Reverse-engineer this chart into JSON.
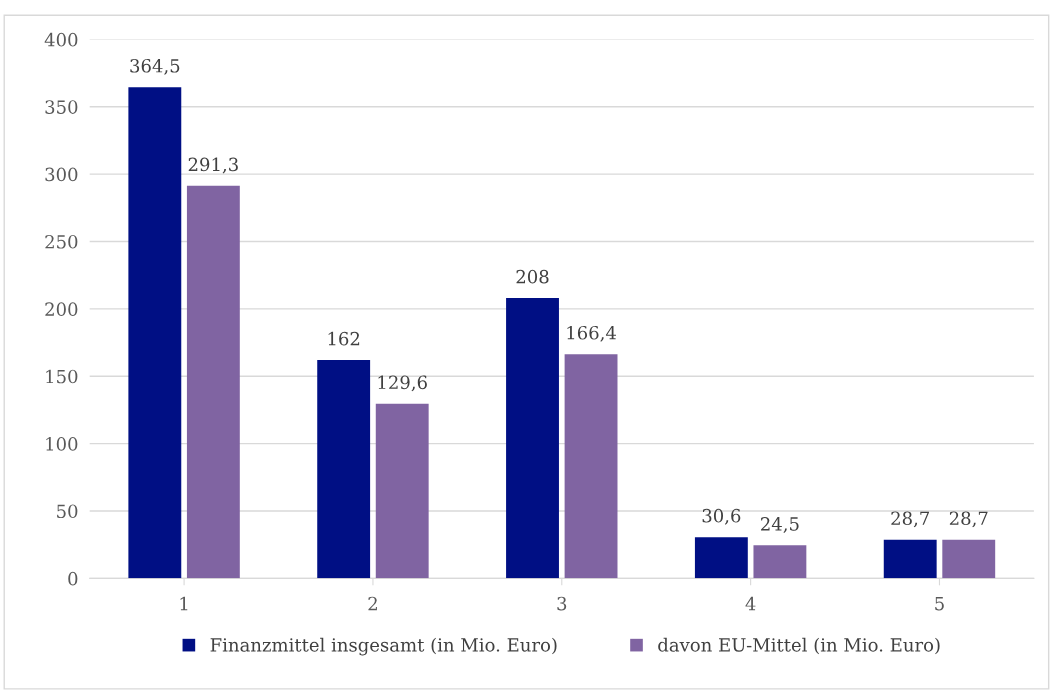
{
  "chart_data": {
    "type": "bar",
    "categories": [
      "1",
      "2",
      "3",
      "4",
      "5"
    ],
    "series": [
      {
        "name": "Finanzmittel insgesamt (in Mio. Euro)",
        "color": "#000f84",
        "values": [
          364.5,
          162,
          208,
          30.6,
          28.7
        ],
        "value_labels": [
          "364,5",
          "162",
          "208",
          "30,6",
          "28,7"
        ]
      },
      {
        "name": "davon EU-Mittel (in Mio. Euro)",
        "color": "#8064a2",
        "values": [
          291.3,
          129.6,
          166.4,
          24.5,
          28.7
        ],
        "value_labels": [
          "291,3",
          "129,6",
          "166,4",
          "24,5",
          "28,7"
        ]
      }
    ],
    "ylim": [
      0,
      400
    ],
    "yticks": [
      0,
      50,
      100,
      150,
      200,
      250,
      300,
      350,
      400
    ],
    "grid": "y",
    "legend": "bottom"
  }
}
